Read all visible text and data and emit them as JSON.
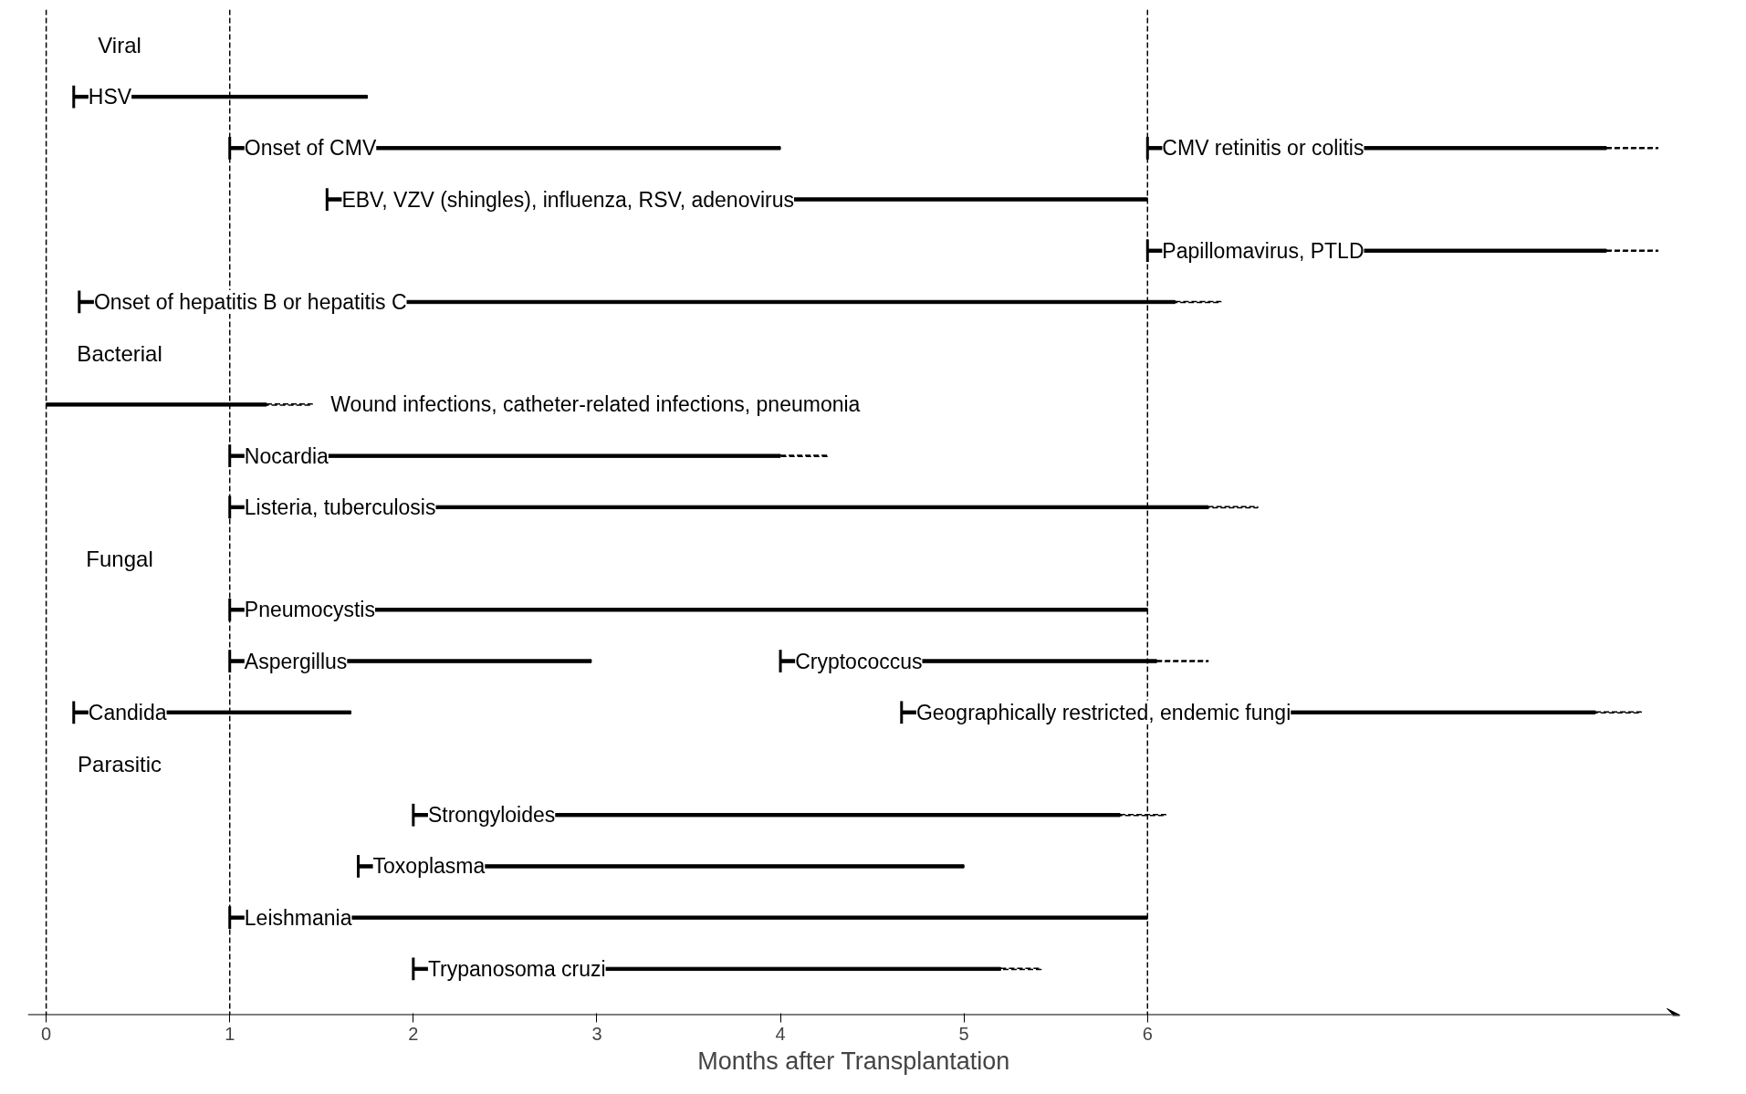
{
  "chart_data": {
    "type": "bar",
    "orientation": "horizontal",
    "xlabel": "Months after Transplantation",
    "categories": [
      "Viral",
      null,
      null,
      null,
      null,
      null,
      "Bacterial",
      null,
      null,
      null,
      "Fungal",
      null,
      null,
      null,
      "Parasitic",
      null,
      null,
      null,
      null
    ],
    "series": [
      {
        "color": "#000000",
        "base": [
          null,
          0.15,
          1,
          1.53,
          6,
          0.18,
          null,
          0,
          1,
          1,
          null,
          1,
          1,
          0.15,
          null,
          2,
          1.7,
          1,
          2
        ],
        "values": [
          null,
          1.6,
          3.0,
          4.47,
          2.5,
          5.97,
          null,
          1.2,
          3.0,
          5.33,
          null,
          5,
          1.97,
          1.51,
          null,
          3.85,
          3.3,
          5,
          3.2
        ],
        "value_labels": [
          null,
          "HSV",
          "Onset of CMV",
          "EBV, VZV (shingles), influenza, RSV, adenovirus",
          "Papillomavirus, PTLD",
          "Onset of hepatitis B or hepatitis C",
          null,
          "Wound infections, catheter-related infections, pneumonia",
          "Nocardia",
          "Listeria, tuberculosis",
          null,
          "Pneumocystis",
          "Aspergillus",
          "Candida",
          null,
          "Strongyloides",
          "Toxoplasma",
          "Leishmania",
          "Trypanosoma cruzi"
        ]
      },
      {
        "color": "#000000",
        "base": [
          null,
          null,
          6,
          null,
          null,
          null,
          null,
          null,
          null,
          null,
          null,
          null,
          4.0,
          4.66,
          null,
          null,
          null,
          null,
          null
        ],
        "values": [
          null,
          null,
          2.5,
          null,
          null,
          null,
          null,
          null,
          null,
          null,
          null,
          null,
          2.05,
          3.78,
          null,
          null,
          null,
          null,
          null
        ],
        "value_labels": [
          null,
          null,
          "CMV retinitis or colitis",
          null,
          null,
          null,
          null,
          null,
          null,
          null,
          null,
          null,
          "Cryptococcus",
          "Geographically restricted, endemic fungi",
          null,
          null,
          null,
          null,
          null
        ]
      },
      {
        "color": "#000000",
        "line_style": "dashed",
        "base": [
          null,
          null,
          8.5,
          null,
          8.5,
          6.15,
          null,
          1.2,
          4.0,
          6.33,
          null,
          null,
          6.05,
          8.44,
          null,
          5.85,
          null,
          null,
          5.2
        ],
        "values": [
          null,
          null,
          0.28,
          null,
          0.28,
          0.25,
          null,
          0.25,
          0.26,
          0.27,
          null,
          null,
          0.28,
          0.25,
          null,
          0.25,
          null,
          null,
          0.22
        ]
      }
    ],
    "xlim": [
      -0.1,
      8.9
    ],
    "xticks": [
      0,
      1,
      2,
      3,
      4,
      5,
      6
    ],
    "ref_lines": [
      {
        "axis": "x",
        "value": 0,
        "line_style": "dashed",
        "color": "#000000"
      },
      {
        "axis": "x",
        "value": 1,
        "line_style": "dashed",
        "color": "#000000"
      },
      {
        "axis": "x",
        "value": 6,
        "line_style": "dashed",
        "color": "#000000"
      }
    ],
    "grid": false
  }
}
